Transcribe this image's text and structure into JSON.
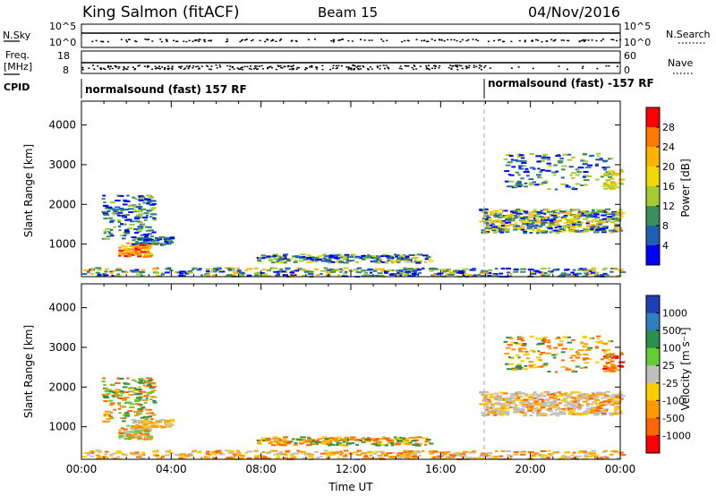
{
  "header": {
    "station": "King Salmon (fitACF)",
    "beam": "Beam 15",
    "date": "04/Nov/2016"
  },
  "top_panels": {
    "nsky_label": "N.Sky",
    "nsearch_label": "N.Search",
    "freq_label_1": "Freq.",
    "freq_label_2": "[MHz]",
    "nave_label": "Nave",
    "cpid_label": "CPID",
    "nsky_ticks": [
      "10^5",
      "10^0"
    ],
    "nsearch_ticks": [
      "10^5",
      "10^0"
    ],
    "freq_ticks": [
      "18",
      "8"
    ],
    "nave_ticks": [
      "60",
      "0"
    ],
    "cpid_modes": [
      "normalsound (fast) 157 RF",
      "normalsound (fast) -157 RF"
    ]
  },
  "chart_data": [
    {
      "type": "heatmap",
      "title": "",
      "xlabel": "",
      "ylabel": "Slant Range [km]",
      "xlim": [
        0,
        24
      ],
      "ylim": [
        180,
        4600
      ],
      "yticks": [
        1000,
        2000,
        3000,
        4000
      ],
      "colorbar": {
        "label": "Power [dB]",
        "ticks": [
          "28",
          "24",
          "20",
          "16",
          "12",
          "8",
          "4"
        ],
        "colors": [
          "#ff0000",
          "#ff7a00",
          "#ffb300",
          "#f0d800",
          "#a5cc2e",
          "#3a8f5a",
          "#1e60b8",
          "#0000ff"
        ]
      },
      "mode_change_hour": 18
    },
    {
      "type": "heatmap",
      "title": "",
      "xlabel": "Time UT",
      "ylabel": "Slant Range [km]",
      "xlim": [
        0,
        24
      ],
      "ylim": [
        180,
        4600
      ],
      "yticks": [
        1000,
        2000,
        3000,
        4000
      ],
      "xticks": [
        "00:00",
        "04:00",
        "08:00",
        "12:00",
        "16:00",
        "20:00",
        "00:00"
      ],
      "colorbar": {
        "label": "Velocity [m s⁻¹]",
        "ticks": [
          "1000",
          "500",
          "100",
          "25",
          "-25",
          "-100",
          "-500",
          "-1000"
        ],
        "colors": [
          "#1f3fb4",
          "#2f7fbf",
          "#2c8f4a",
          "#66cc33",
          "#bfbfbf",
          "#ffcc00",
          "#ff9900",
          "#ff6600",
          "#ff0000"
        ]
      },
      "mode_change_hour": 18
    }
  ]
}
